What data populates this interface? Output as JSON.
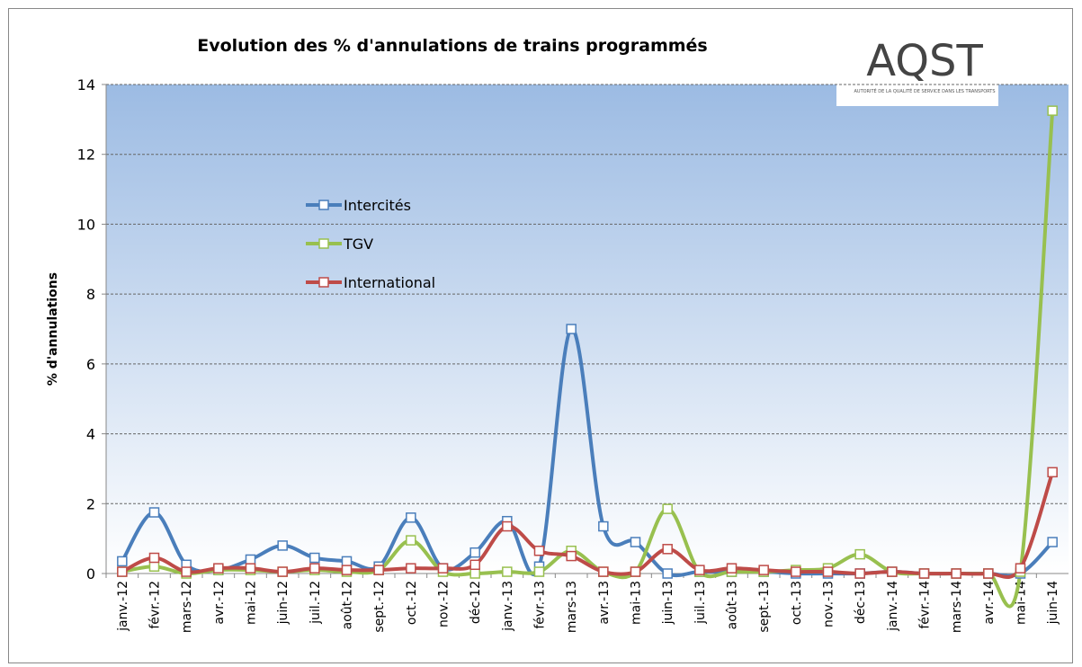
{
  "chart_data": {
    "type": "line",
    "title": "Evolution des % d'annulations de trains programmés",
    "y_label": "% d'annulations",
    "logo": {
      "name": "AQST",
      "subtitle": "AUTORITÉ DE LA QUALITÉ DE SERVICE DANS LES TRANSPORTS"
    },
    "categories": [
      "janv.-12",
      "févr.-12",
      "mars-12",
      "avr.-12",
      "mai-12",
      "juin-12",
      "juil.-12",
      "août-12",
      "sept.-12",
      "oct.-12",
      "nov.-12",
      "déc-12",
      "janv.-13",
      "févr.-13",
      "mars-13",
      "avr.-13",
      "mai-13",
      "juin-13",
      "juil.-13",
      "août-13",
      "sept.-13",
      "oct.-13",
      "nov.-13",
      "déc-13",
      "janv.-14",
      "févr.-14",
      "mars-14",
      "avr.-14",
      "mai-14",
      "juin-14"
    ],
    "series": [
      {
        "name": "Intercités",
        "color": "#4a7ebb",
        "values": [
          0.35,
          1.75,
          0.25,
          0.1,
          0.4,
          0.8,
          0.45,
          0.35,
          0.2,
          1.6,
          0.15,
          0.6,
          1.5,
          0.2,
          7.0,
          1.35,
          0.9,
          0.0,
          0.05,
          0.05,
          0.05,
          0.0,
          0.0,
          0.0,
          0.05,
          0.0,
          0.0,
          0.0,
          0.0,
          0.9
        ]
      },
      {
        "name": "TGV",
        "color": "#98c04f",
        "values": [
          0.05,
          0.2,
          0.0,
          0.1,
          0.1,
          0.05,
          0.1,
          0.05,
          0.1,
          0.95,
          0.05,
          0.0,
          0.05,
          0.05,
          0.65,
          0.05,
          0.05,
          1.85,
          0.05,
          0.05,
          0.05,
          0.1,
          0.15,
          0.55,
          0.05,
          0.0,
          0.0,
          0.0,
          0.05,
          13.25
        ]
      },
      {
        "name": "International",
        "color": "#be4b48",
        "values": [
          0.05,
          0.45,
          0.05,
          0.15,
          0.15,
          0.05,
          0.15,
          0.1,
          0.1,
          0.15,
          0.15,
          0.25,
          1.35,
          0.65,
          0.5,
          0.05,
          0.05,
          0.7,
          0.1,
          0.15,
          0.1,
          0.05,
          0.05,
          0.0,
          0.05,
          0.0,
          0.0,
          0.0,
          0.15,
          2.9
        ]
      }
    ],
    "ylim": [
      0,
      14
    ],
    "yticks": [
      0,
      2,
      4,
      6,
      8,
      10,
      12,
      14
    ],
    "grid": true,
    "legend": "upper-left"
  }
}
